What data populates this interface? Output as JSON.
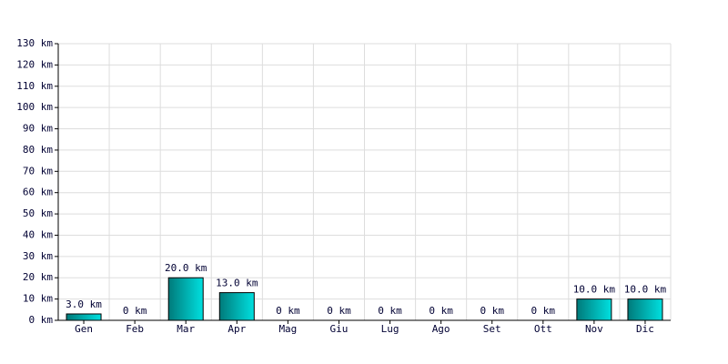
{
  "chart_data": {
    "type": "bar",
    "categories": [
      "Gen",
      "Feb",
      "Mar",
      "Apr",
      "Mag",
      "Giu",
      "Lug",
      "Ago",
      "Set",
      "Ott",
      "Nov",
      "Dic"
    ],
    "values": [
      3,
      0,
      20,
      13,
      0,
      0,
      0,
      0,
      0,
      0,
      10,
      10
    ],
    "value_labels": [
      "3.0 km",
      "0 km",
      "20.0 km",
      "13.0 km",
      "0 km",
      "0 km",
      "0 km",
      "0 km",
      "0 km",
      "0 km",
      "10.0 km",
      "10.0 km"
    ],
    "color": "#00e0e0",
    "ylim": [
      0,
      130
    ],
    "yticks": [
      {
        "value": 0,
        "label": "0 km"
      },
      {
        "value": 10,
        "label": "10 km"
      },
      {
        "value": 20,
        "label": "20 km"
      },
      {
        "value": 30,
        "label": "30 km"
      },
      {
        "value": 40,
        "label": "40 km"
      },
      {
        "value": 50,
        "label": "50 km"
      },
      {
        "value": 60,
        "label": "60 km"
      },
      {
        "value": 70,
        "label": "70 km"
      },
      {
        "value": 80,
        "label": "80 km"
      },
      {
        "value": 90,
        "label": "90 km"
      },
      {
        "value": 100,
        "label": "100 km"
      },
      {
        "value": 110,
        "label": "110 km"
      },
      {
        "value": 120,
        "label": "120 km"
      },
      {
        "value": 130,
        "label": "130 km"
      }
    ],
    "grid": true
  }
}
